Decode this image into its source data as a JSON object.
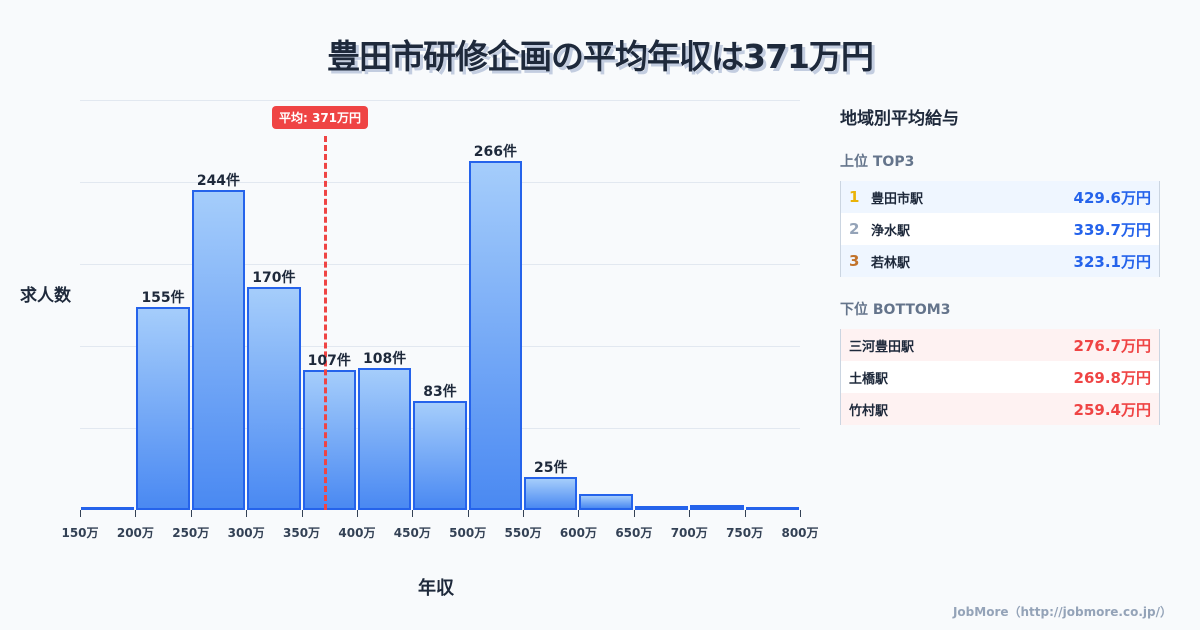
{
  "title": "豊田市研修企画の平均年収は371万円",
  "chart_data": {
    "type": "bar",
    "title": "豊田市研修企画の平均年収は371万円",
    "xlabel": "年収",
    "ylabel": "求人数",
    "categories": [
      "150-200万",
      "200-250万",
      "250-300万",
      "300-350万",
      "350-400万",
      "400-450万",
      "450-500万",
      "500-550万",
      "550-600万",
      "600-650万",
      "650-700万",
      "700-750万",
      "750-800万"
    ],
    "values": [
      2,
      155,
      244,
      170,
      107,
      108,
      83,
      266,
      25,
      12,
      3,
      4,
      2
    ],
    "value_labels": [
      "",
      "155件",
      "244件",
      "170件",
      "107件",
      "108件",
      "83件",
      "266件",
      "25件",
      "",
      "",
      "",
      ""
    ],
    "x_ticks": [
      "150万",
      "200万",
      "250万",
      "300万",
      "350万",
      "400万",
      "450万",
      "500万",
      "550万",
      "600万",
      "650万",
      "700万",
      "750万",
      "800万"
    ],
    "ylim": [
      0,
      312.5
    ],
    "grid": true,
    "mean_line": {
      "value": 371,
      "label": "平均: 371万円",
      "color": "#ef4444"
    },
    "bar_color": "#2563eb"
  },
  "sidebar": {
    "title": "地域別平均給与",
    "top_label": "上位 TOP3",
    "top": [
      {
        "rank": "1",
        "name": "豊田市駅",
        "value": "429.6万円",
        "rank_color": "#eab308"
      },
      {
        "rank": "2",
        "name": "浄水駅",
        "value": "339.7万円",
        "rank_color": "#94a3b8"
      },
      {
        "rank": "3",
        "name": "若林駅",
        "value": "323.1万円",
        "rank_color": "#c2732b"
      }
    ],
    "bottom_label": "下位 BOTTOM3",
    "bottom": [
      {
        "name": "三河豊田駅",
        "value": "276.7万円"
      },
      {
        "name": "土橋駅",
        "value": "269.8万円"
      },
      {
        "name": "竹村駅",
        "value": "259.4万円"
      }
    ]
  },
  "credit": "JobMore（http://jobmore.co.jp/）"
}
